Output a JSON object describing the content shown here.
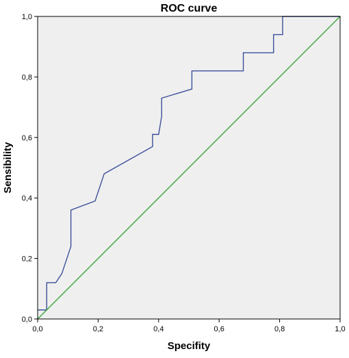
{
  "chart_data": {
    "type": "line",
    "title": "ROC curve",
    "xlabel": "Specifity",
    "ylabel": "Sensibility",
    "xlim": [
      0,
      1
    ],
    "ylim": [
      0,
      1
    ],
    "x_ticks": [
      "0,0",
      "0,2",
      "0,4",
      "0,6",
      "0,8",
      "1,0"
    ],
    "y_ticks": [
      "0,0",
      "0,2",
      "0,4",
      "0,6",
      "0,8",
      "1,0"
    ],
    "grid": false,
    "legend": "none",
    "plot_background": "#efefef",
    "series": [
      {
        "color": "#3c4f9a",
        "style": "step",
        "x": [
          0.0,
          0.03,
          0.03,
          0.06,
          0.08,
          0.08,
          0.09,
          0.09,
          0.11,
          0.11,
          0.19,
          0.22,
          0.38,
          0.38,
          0.4,
          0.41,
          0.41,
          0.51,
          0.51,
          0.68,
          0.68,
          0.78,
          0.78,
          0.81,
          0.81,
          1.0
        ],
        "y": [
          0.03,
          0.03,
          0.12,
          0.12,
          0.15,
          0.15,
          0.18,
          0.18,
          0.24,
          0.36,
          0.39,
          0.48,
          0.57,
          0.61,
          0.61,
          0.67,
          0.73,
          0.76,
          0.82,
          0.82,
          0.88,
          0.88,
          0.94,
          0.94,
          1.0,
          1.0
        ]
      },
      {
        "color": "#3aa83a",
        "style": "line",
        "x": [
          0,
          1
        ],
        "y": [
          0,
          1
        ]
      }
    ]
  }
}
